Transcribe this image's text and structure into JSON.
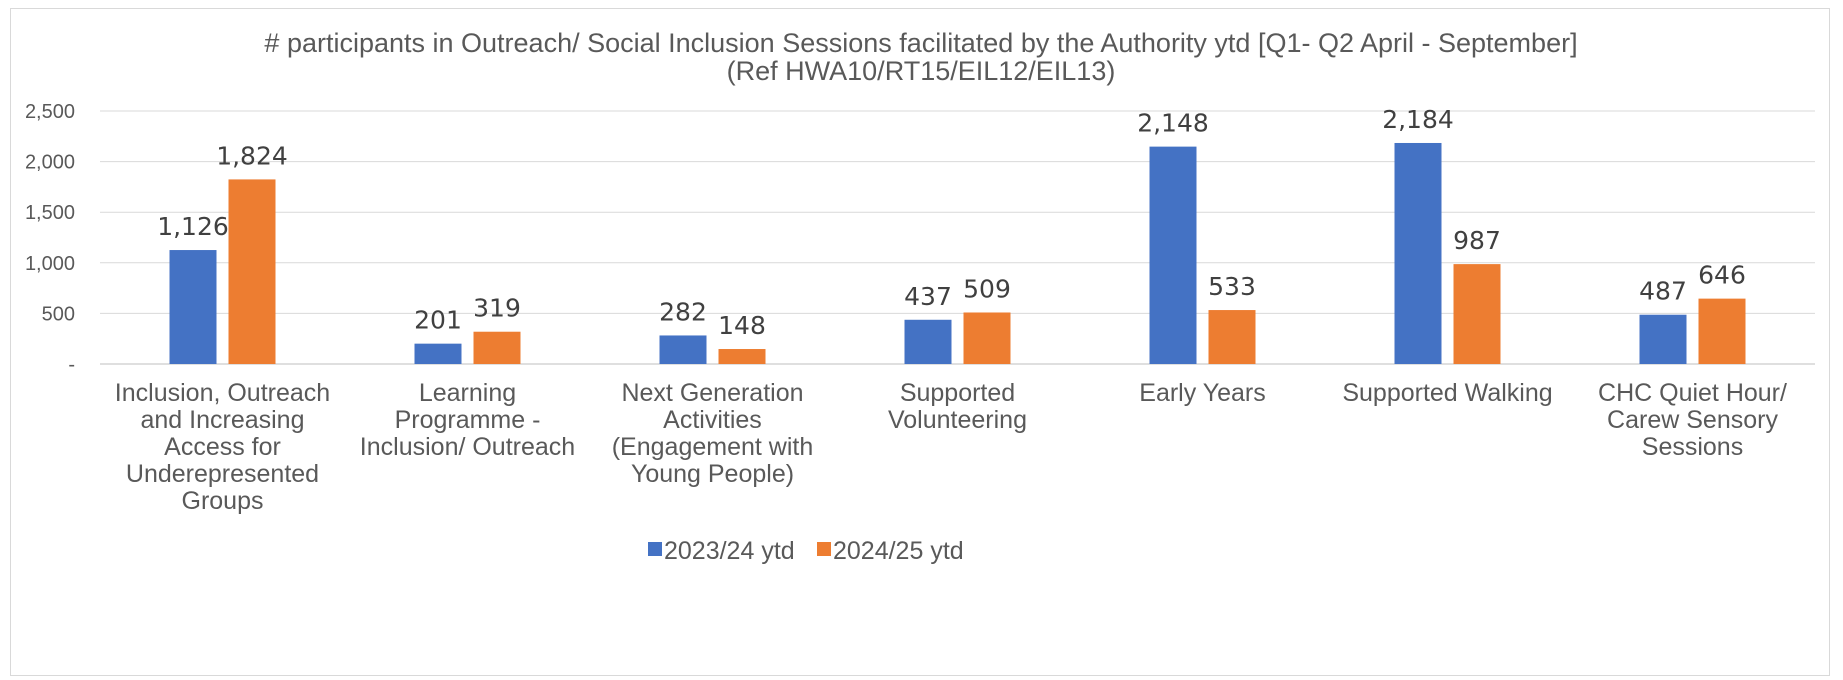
{
  "chart_data": {
    "type": "bar",
    "title": "# participants in Outreach/ Social Inclusion Sessions facilitated by the Authority ytd [Q1- Q2 April - September]",
    "subtitle": "(Ref HWA10/RT15/EIL12/EIL13)",
    "categories": [
      [
        "Inclusion, Outreach",
        "and Increasing",
        "Access for",
        "Underepresented",
        "Groups"
      ],
      [
        "Learning",
        "Programme -",
        "Inclusion/ Outreach"
      ],
      [
        "Next Generation",
        "Activities",
        "(Engagement with",
        "Young People)"
      ],
      [
        "Supported",
        "Volunteering"
      ],
      [
        "Early Years"
      ],
      [
        "Supported Walking"
      ],
      [
        "CHC Quiet Hour/",
        "Carew Sensory",
        "Sessions"
      ]
    ],
    "series": [
      {
        "name": "2023/24 ytd",
        "color": "#4472c4",
        "values": [
          1126,
          201,
          282,
          437,
          2148,
          2184,
          487
        ],
        "labels": [
          "1,126",
          "201",
          "282",
          "437",
          "2,148",
          "2,184",
          "487"
        ]
      },
      {
        "name": "2024/25 ytd",
        "color": "#ed7d31",
        "values": [
          1824,
          319,
          148,
          509,
          533,
          987,
          646
        ],
        "labels": [
          "1,824",
          "319",
          "148",
          "509",
          "533",
          "987",
          "646"
        ]
      }
    ],
    "ylim": [
      0,
      2500
    ],
    "yticks": [
      0,
      500,
      1000,
      1500,
      2000,
      2500
    ],
    "ytick_labels": [
      "-",
      "500",
      "1,000",
      "1,500",
      "2,000",
      "2,500"
    ],
    "grid": true,
    "legend_position": "bottom"
  }
}
